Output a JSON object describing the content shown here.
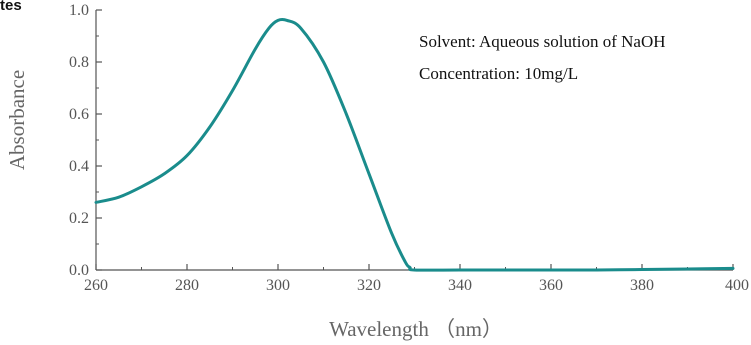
{
  "chart_data": {
    "type": "line",
    "xlabel": "Wavelength （nm）",
    "ylabel": "Absorbance",
    "xlim": [
      260,
      400
    ],
    "ylim": [
      0,
      1.0
    ],
    "x_ticks": [
      260,
      280,
      300,
      320,
      340,
      360,
      380,
      400
    ],
    "x_tick_labels": [
      "260",
      "280",
      "300",
      "320",
      "340",
      "360",
      "380",
      "400"
    ],
    "y_ticks": [
      0.0,
      0.2,
      0.4,
      0.6,
      0.8,
      1.0
    ],
    "y_tick_labels": [
      "0.0",
      "0.2",
      "0.4",
      "0.6",
      "0.8",
      "1.0"
    ],
    "grid": false,
    "annotations": [
      "Solvent: Aqueous solution of NaOH",
      "Concentration: 10mg/L"
    ],
    "top_left_fragment": "tes",
    "series": [
      {
        "color": "#1a8c8c",
        "x": [
          260,
          265,
          270,
          275,
          280,
          285,
          290,
          295,
          298,
          300,
          302,
          305,
          310,
          315,
          320,
          325,
          328,
          329,
          330,
          340,
          350,
          360,
          370,
          380,
          390,
          400
        ],
        "y": [
          0.26,
          0.28,
          0.32,
          0.37,
          0.44,
          0.55,
          0.69,
          0.85,
          0.93,
          0.96,
          0.96,
          0.93,
          0.8,
          0.6,
          0.37,
          0.14,
          0.03,
          0.01,
          0.0,
          0.0,
          0.0,
          0.0,
          0.0,
          0.002,
          0.004,
          0.006
        ]
      }
    ]
  }
}
